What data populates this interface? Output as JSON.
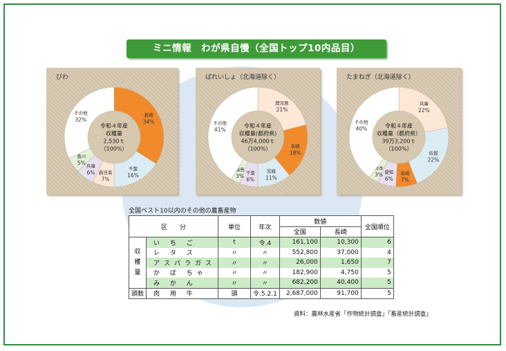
{
  "header": {
    "title": "ミニ情報　わが県自慢（全国トップ10内品目）"
  },
  "colors": {
    "orange": "#f08a2a",
    "peach": "#fde8d8",
    "light_blue": "#dcecf4",
    "light_purple": "#e8e0f0",
    "light_green": "#e6f1da",
    "white": "#ffffff",
    "banner_green": "#3f9a3a",
    "table_green": "#cdebc7"
  },
  "chart_data": [
    {
      "type": "pie",
      "title": "びわ",
      "center_text": [
        "令和４年産",
        "収穫量",
        "2,530ｔ",
        "（100%）"
      ],
      "slices": [
        {
          "label": "長崎",
          "value": 34,
          "display": "34%",
          "color": "#f08a2a"
        },
        {
          "label": "千葉",
          "value": 16,
          "display": "16%",
          "color": "#dcecf4"
        },
        {
          "label": "鹿児島",
          "value": 7,
          "display": "7%",
          "color": "#fde8d8"
        },
        {
          "label": "兵庫",
          "value": 6,
          "display": "6%",
          "color": "#e8e0f0"
        },
        {
          "label": "香川",
          "value": 5,
          "display": "5%",
          "color": "#e6f1da"
        },
        {
          "label": "その他",
          "value": 32,
          "display": "32%",
          "color": "#ffffff"
        }
      ]
    },
    {
      "type": "pie",
      "title": "ばれいしょ（北海道除く）",
      "center_text": [
        "令和４年産",
        "収穫量(都府県)",
        "46万4,000ｔ",
        "（100%）"
      ],
      "slices": [
        {
          "label": "鹿児島",
          "value": 21,
          "display": "21%",
          "color": "#fde8d8"
        },
        {
          "label": "長崎",
          "value": 18,
          "display": "18%",
          "color": "#f08a2a"
        },
        {
          "label": "茨城",
          "value": 11,
          "display": "11%",
          "color": "#dcecf4"
        },
        {
          "label": "千葉",
          "value": 6,
          "display": "6%",
          "color": "#e8e0f0"
        },
        {
          "label": "福島",
          "value": 3,
          "display": "3%",
          "color": "#e6f1da"
        },
        {
          "label": "その他",
          "value": 41,
          "display": "41%",
          "color": "#ffffff"
        }
      ]
    },
    {
      "type": "pie",
      "title": "たまねぎ（北海道除く）",
      "center_text": [
        "令和４年産",
        "収穫量（都府県）",
        "39万3,200ｔ",
        "（100%）"
      ],
      "slices": [
        {
          "label": "兵庫",
          "value": 22,
          "display": "22%",
          "color": "#fde8d8"
        },
        {
          "label": "佐賀",
          "value": 22,
          "display": "22%",
          "color": "#dcecf4"
        },
        {
          "label": "長崎",
          "value": 7,
          "display": "7%",
          "color": "#f08a2a"
        },
        {
          "label": "愛知",
          "value": 6,
          "display": "6%",
          "color": "#e8e0f0"
        },
        {
          "label": "熊本",
          "value": 3,
          "display": "3%",
          "color": "#e6f1da"
        },
        {
          "label": "その他",
          "value": 40,
          "display": "40%",
          "color": "#ffffff"
        }
      ]
    },
    {
      "type": "table",
      "title": "全国ベスト10以内のその他の農畜産物",
      "headers": {
        "category": "区　　分",
        "unit": "単位",
        "year": "年次",
        "value_group": "数値",
        "national": "全国",
        "nagasaki": "長崎",
        "rank": "全国順位"
      },
      "group_label": "収穫量",
      "livestock_label": "頭数",
      "rows": [
        {
          "item": "い ち ご",
          "unit": "t",
          "year": "令.4",
          "national": "161,100",
          "nagasaki": "10,300",
          "rank": "6"
        },
        {
          "item": "レ タ ス",
          "unit": "〃",
          "year": "〃",
          "national": "552,800",
          "nagasaki": "37,000",
          "rank": "4"
        },
        {
          "item": "アスパラガス",
          "unit": "〃",
          "year": "〃",
          "national": "26,000",
          "nagasaki": "1,650",
          "rank": "7"
        },
        {
          "item": "か ぼ ちゃ",
          "unit": "〃",
          "year": "〃",
          "national": "182,900",
          "nagasaki": "4,750",
          "rank": "5"
        },
        {
          "item": "み か ん",
          "unit": "〃",
          "year": "〃",
          "national": "682,200",
          "nagasaki": "40,400",
          "rank": "5"
        }
      ],
      "livestock_row": {
        "item": "肉 用 牛",
        "unit": "頭",
        "year": "令.5.2.1",
        "national": "2,687,000",
        "nagasaki": "91,700",
        "rank": "5"
      }
    }
  ],
  "source": "資料：農林水産省「作物統計調査」「畜産統計調査」"
}
